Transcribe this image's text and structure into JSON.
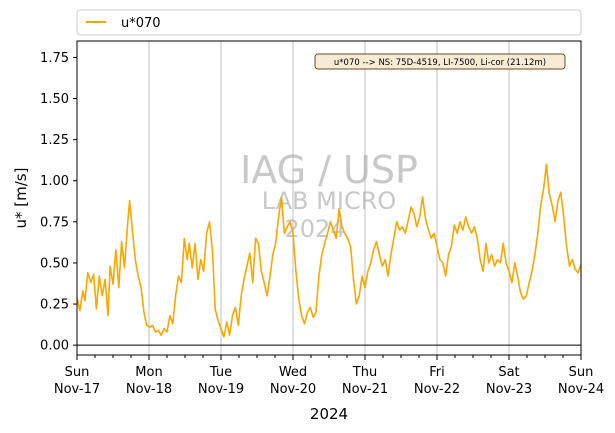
{
  "chart_data": {
    "type": "line",
    "ylabel": "u* [m/s]",
    "xlabel": "2024",
    "ylim": [
      -0.06,
      1.85
    ],
    "xlim": [
      0,
      7
    ],
    "y_ticks": [
      0.0,
      0.25,
      0.5,
      0.75,
      1.0,
      1.25,
      1.5,
      1.75
    ],
    "y_tick_labels": [
      "0.00",
      "0.25",
      "0.50",
      "0.75",
      "1.00",
      "1.25",
      "1.50",
      "1.75"
    ],
    "x_ticks": [
      {
        "day": "Sun",
        "date": "Nov-17"
      },
      {
        "day": "Mon",
        "date": "Nov-18"
      },
      {
        "day": "Tue",
        "date": "Nov-19"
      },
      {
        "day": "Wed",
        "date": "Nov-20"
      },
      {
        "day": "Thu",
        "date": "Nov-21"
      },
      {
        "day": "Fri",
        "date": "Nov-22"
      },
      {
        "day": "Sat",
        "date": "Nov-23"
      },
      {
        "day": "Sun",
        "date": "Nov-24"
      }
    ],
    "grid": "vertical at major ticks",
    "zero_line": true,
    "legend_position": "top, above plot",
    "info_box": "u*070 --> NS: 75D-4519, LI-7500, Li-cor (21.12m)",
    "watermark": [
      "IAG / USP",
      "LAB MICRO",
      "2024"
    ],
    "series": [
      {
        "name": "u*070",
        "color": "#ffa500",
        "x_unit": "days since Sun Nov-17 00:00",
        "points": [
          [
            0.0,
            0.29
          ],
          [
            0.04,
            0.21
          ],
          [
            0.08,
            0.33
          ],
          [
            0.11,
            0.27
          ],
          [
            0.15,
            0.44
          ],
          [
            0.19,
            0.38
          ],
          [
            0.23,
            0.43
          ],
          [
            0.27,
            0.22
          ],
          [
            0.31,
            0.42
          ],
          [
            0.35,
            0.3
          ],
          [
            0.39,
            0.4
          ],
          [
            0.43,
            0.18
          ],
          [
            0.46,
            0.48
          ],
          [
            0.5,
            0.37
          ],
          [
            0.54,
            0.58
          ],
          [
            0.58,
            0.35
          ],
          [
            0.62,
            0.63
          ],
          [
            0.66,
            0.47
          ],
          [
            0.7,
            0.72
          ],
          [
            0.73,
            0.88
          ],
          [
            0.77,
            0.7
          ],
          [
            0.81,
            0.52
          ],
          [
            0.85,
            0.42
          ],
          [
            0.89,
            0.35
          ],
          [
            0.93,
            0.2
          ],
          [
            0.97,
            0.12
          ],
          [
            1.01,
            0.11
          ],
          [
            1.05,
            0.12
          ],
          [
            1.09,
            0.08
          ],
          [
            1.13,
            0.09
          ],
          [
            1.17,
            0.06
          ],
          [
            1.21,
            0.1
          ],
          [
            1.25,
            0.08
          ],
          [
            1.29,
            0.18
          ],
          [
            1.33,
            0.13
          ],
          [
            1.37,
            0.3
          ],
          [
            1.41,
            0.42
          ],
          [
            1.45,
            0.38
          ],
          [
            1.49,
            0.65
          ],
          [
            1.53,
            0.52
          ],
          [
            1.56,
            0.62
          ],
          [
            1.6,
            0.47
          ],
          [
            1.64,
            0.62
          ],
          [
            1.68,
            0.4
          ],
          [
            1.72,
            0.52
          ],
          [
            1.76,
            0.45
          ],
          [
            1.8,
            0.68
          ],
          [
            1.84,
            0.75
          ],
          [
            1.88,
            0.58
          ],
          [
            1.92,
            0.22
          ],
          [
            1.96,
            0.15
          ],
          [
            2.0,
            0.1
          ],
          [
            2.04,
            0.05
          ],
          [
            2.08,
            0.14
          ],
          [
            2.12,
            0.06
          ],
          [
            2.16,
            0.18
          ],
          [
            2.2,
            0.23
          ],
          [
            2.24,
            0.12
          ],
          [
            2.28,
            0.3
          ],
          [
            2.32,
            0.4
          ],
          [
            2.36,
            0.48
          ],
          [
            2.4,
            0.56
          ],
          [
            2.44,
            0.38
          ],
          [
            2.48,
            0.65
          ],
          [
            2.52,
            0.62
          ],
          [
            2.56,
            0.45
          ],
          [
            2.6,
            0.38
          ],
          [
            2.64,
            0.3
          ],
          [
            2.68,
            0.42
          ],
          [
            2.72,
            0.55
          ],
          [
            2.76,
            0.62
          ],
          [
            2.8,
            0.78
          ],
          [
            2.84,
            0.9
          ],
          [
            2.88,
            0.68
          ],
          [
            2.92,
            0.72
          ],
          [
            2.96,
            0.75
          ],
          [
            3.0,
            0.68
          ],
          [
            3.04,
            0.45
          ],
          [
            3.08,
            0.28
          ],
          [
            3.12,
            0.18
          ],
          [
            3.16,
            0.13
          ],
          [
            3.2,
            0.2
          ],
          [
            3.24,
            0.23
          ],
          [
            3.28,
            0.17
          ],
          [
            3.32,
            0.2
          ],
          [
            3.36,
            0.42
          ],
          [
            3.4,
            0.55
          ],
          [
            3.44,
            0.62
          ],
          [
            3.48,
            0.68
          ],
          [
            3.52,
            0.75
          ],
          [
            3.56,
            0.7
          ],
          [
            3.6,
            0.65
          ],
          [
            3.64,
            0.83
          ],
          [
            3.68,
            0.72
          ],
          [
            3.72,
            0.68
          ],
          [
            3.76,
            0.65
          ],
          [
            3.8,
            0.6
          ],
          [
            3.84,
            0.4
          ],
          [
            3.88,
            0.25
          ],
          [
            3.92,
            0.3
          ],
          [
            3.96,
            0.42
          ],
          [
            4.0,
            0.35
          ],
          [
            4.04,
            0.45
          ],
          [
            4.08,
            0.5
          ],
          [
            4.12,
            0.58
          ],
          [
            4.16,
            0.63
          ],
          [
            4.2,
            0.55
          ],
          [
            4.24,
            0.48
          ],
          [
            4.28,
            0.52
          ],
          [
            4.32,
            0.42
          ],
          [
            4.36,
            0.55
          ],
          [
            4.4,
            0.65
          ],
          [
            4.44,
            0.75
          ],
          [
            4.48,
            0.7
          ],
          [
            4.52,
            0.72
          ],
          [
            4.56,
            0.68
          ],
          [
            4.6,
            0.76
          ],
          [
            4.64,
            0.84
          ],
          [
            4.68,
            0.8
          ],
          [
            4.72,
            0.72
          ],
          [
            4.76,
            0.78
          ],
          [
            4.8,
            0.9
          ],
          [
            4.84,
            0.77
          ],
          [
            4.88,
            0.7
          ],
          [
            4.92,
            0.65
          ],
          [
            4.96,
            0.68
          ],
          [
            5.0,
            0.6
          ],
          [
            5.04,
            0.52
          ],
          [
            5.08,
            0.5
          ],
          [
            5.12,
            0.42
          ],
          [
            5.16,
            0.55
          ],
          [
            5.2,
            0.6
          ],
          [
            5.24,
            0.73
          ],
          [
            5.28,
            0.68
          ],
          [
            5.32,
            0.75
          ],
          [
            5.36,
            0.7
          ],
          [
            5.4,
            0.78
          ],
          [
            5.44,
            0.72
          ],
          [
            5.48,
            0.68
          ],
          [
            5.52,
            0.72
          ],
          [
            5.56,
            0.65
          ],
          [
            5.6,
            0.52
          ],
          [
            5.64,
            0.45
          ],
          [
            5.68,
            0.62
          ],
          [
            5.72,
            0.5
          ],
          [
            5.76,
            0.55
          ],
          [
            5.8,
            0.48
          ],
          [
            5.84,
            0.52
          ],
          [
            5.88,
            0.5
          ],
          [
            5.92,
            0.62
          ],
          [
            5.96,
            0.5
          ],
          [
            6.0,
            0.45
          ],
          [
            6.04,
            0.38
          ],
          [
            6.08,
            0.5
          ],
          [
            6.12,
            0.42
          ],
          [
            6.16,
            0.32
          ],
          [
            6.2,
            0.28
          ],
          [
            6.24,
            0.3
          ],
          [
            6.28,
            0.38
          ],
          [
            6.32,
            0.45
          ],
          [
            6.36,
            0.55
          ],
          [
            6.4,
            0.68
          ],
          [
            6.44,
            0.85
          ],
          [
            6.48,
            0.95
          ],
          [
            6.52,
            1.1
          ],
          [
            6.56,
            0.92
          ],
          [
            6.6,
            0.85
          ],
          [
            6.64,
            0.75
          ],
          [
            6.68,
            0.88
          ],
          [
            6.72,
            0.93
          ],
          [
            6.76,
            0.78
          ],
          [
            6.8,
            0.6
          ],
          [
            6.84,
            0.48
          ],
          [
            6.88,
            0.52
          ],
          [
            6.92,
            0.46
          ],
          [
            6.96,
            0.44
          ],
          [
            7.0,
            0.49
          ]
        ]
      }
    ]
  }
}
